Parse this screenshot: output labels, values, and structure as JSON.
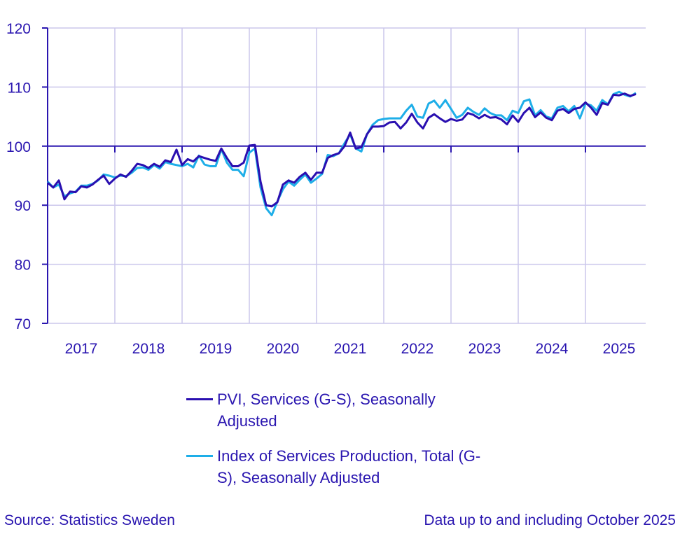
{
  "chart_data": {
    "type": "line",
    "title": "",
    "xlabel": "",
    "ylabel": "",
    "ylim": [
      70,
      120
    ],
    "yticks": [
      70,
      80,
      90,
      100,
      110,
      120
    ],
    "x_start": "2017-01",
    "x_end": "2025-10",
    "frequency": "monthly",
    "xtick_labels": [
      "2017",
      "2018",
      "2019",
      "2020",
      "2021",
      "2022",
      "2023",
      "2024",
      "2025"
    ],
    "grid": true,
    "reference_line": 100,
    "legend_position": "bottom",
    "series": [
      {
        "name": "PVI, Services (G-S), Seasonally Adjusted",
        "color": "#2a0fb0",
        "values": [
          93.8,
          93.0,
          94.2,
          91.0,
          92.3,
          92.2,
          93.2,
          93.0,
          93.5,
          94.3,
          95.0,
          93.6,
          94.5,
          95.2,
          94.8,
          95.8,
          97.0,
          96.8,
          96.3,
          97.0,
          96.5,
          97.6,
          97.3,
          99.4,
          96.8,
          97.8,
          97.4,
          98.3,
          98.0,
          97.7,
          97.5,
          99.6,
          98.0,
          96.6,
          96.6,
          97.2,
          100.1,
          100.2,
          94.0,
          90.0,
          89.8,
          90.5,
          93.5,
          94.2,
          93.8,
          94.8,
          95.5,
          94.3,
          95.5,
          95.5,
          98.0,
          98.5,
          98.8,
          100.0,
          102.3,
          99.6,
          99.8,
          102.0,
          103.3,
          103.3,
          103.4,
          104.0,
          104.1,
          103.0,
          104.0,
          105.5,
          104.0,
          103.0,
          104.8,
          105.4,
          104.7,
          104.1,
          104.6,
          104.3,
          104.5,
          105.6,
          105.3,
          104.7,
          105.3,
          104.8,
          104.9,
          104.5,
          103.7,
          105.2,
          104.1,
          105.6,
          106.5,
          104.9,
          105.7,
          104.8,
          104.4,
          106.0,
          106.3,
          105.6,
          106.3,
          106.5,
          107.4,
          106.5,
          105.3,
          107.3,
          107.0,
          108.7,
          108.6,
          108.9,
          108.5,
          108.8
        ]
      },
      {
        "name": "Index of Services Production, Total (G-S), Seasonally Adjusted",
        "color": "#1eaee8",
        "values": [
          94.0,
          93.0,
          93.5,
          91.5,
          92.0,
          92.3,
          93.3,
          93.3,
          93.6,
          94.2,
          95.2,
          95.0,
          94.7,
          95.0,
          94.9,
          95.5,
          96.3,
          96.4,
          96.0,
          96.8,
          96.2,
          97.3,
          97.0,
          96.8,
          96.6,
          97.0,
          96.4,
          98.4,
          96.9,
          96.6,
          96.6,
          99.5,
          97.2,
          96.0,
          96.0,
          94.9,
          98.9,
          99.6,
          93.0,
          89.5,
          88.3,
          90.6,
          92.7,
          94.0,
          93.3,
          94.3,
          95.2,
          93.8,
          94.5,
          95.3,
          98.5,
          98.3,
          98.8,
          100.5,
          102.0,
          99.6,
          99.1,
          102.0,
          103.6,
          104.4,
          104.6,
          104.7,
          104.7,
          104.7,
          106.0,
          107.0,
          105.0,
          104.8,
          107.2,
          107.7,
          106.5,
          107.8,
          106.3,
          104.8,
          105.3,
          106.5,
          105.8,
          105.3,
          106.4,
          105.6,
          105.2,
          105.2,
          104.4,
          106.0,
          105.6,
          107.6,
          107.9,
          105.2,
          106.1,
          105.0,
          104.7,
          106.5,
          106.8,
          105.9,
          106.8,
          104.7,
          107.2,
          106.9,
          106.0,
          107.8,
          107.1,
          108.8,
          109.2,
          108.7,
          108.4,
          109.0
        ]
      }
    ],
    "legend": [
      "PVI, Services (G-S), Seasonally",
      "Adjusted",
      "Index of Services Production, Total (G-",
      "S), Seasonally Adjusted"
    ]
  },
  "footer": {
    "source": "Source: Statistics Sweden",
    "note": "Data up to and including October 2025"
  }
}
